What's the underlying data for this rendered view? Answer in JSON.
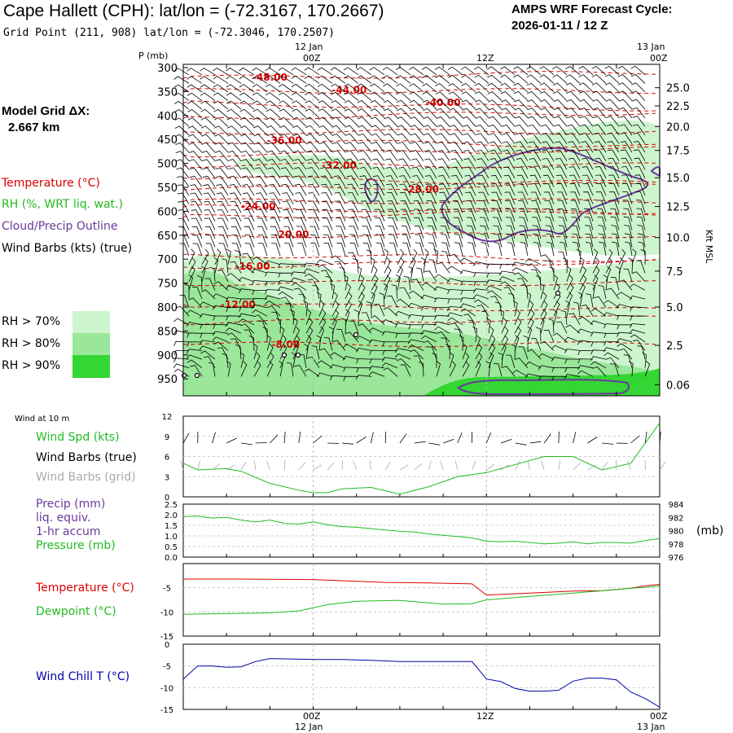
{
  "header": {
    "title": "Cape Hallett (CPH):  lat/lon = (-72.3167, 170.2667)",
    "grid_point": "Grid Point (211, 908) lat/lon = (-72.3046, 170.2507)",
    "cycle_line1": "AMPS WRF Forecast Cycle:",
    "cycle_line2": "2026-01-11 / 12  Z",
    "model_grid_line1": "Model Grid ΔX:",
    "model_grid_line2": "2.667 km"
  },
  "legend_upper": {
    "temperature": "Temperature (°C)",
    "rh": "RH (%, WRT liq. wat.)",
    "cloud": "Cloud/Precip Outline",
    "wind": "Wind Barbs (kts) (true)",
    "rh70": "RH > 70%",
    "rh80": "RH > 80%",
    "rh90": "RH > 90%"
  },
  "colors": {
    "temperature": "#dd0000",
    "rh": "#22bb22",
    "cloud": "#6a3a9a",
    "rh70": "#cdf5cd",
    "rh80": "#9ae69a",
    "rh90": "#33d633",
    "wind_chill": "#0000aa",
    "grid_barbs": "#aaaaaa"
  },
  "time_axis": {
    "top_labels": [
      "12 Jan",
      "13 Jan"
    ],
    "top_hours": [
      "00Z",
      "12Z",
      "00Z"
    ],
    "bottom_hours": [
      "00Z",
      "12Z",
      "00Z"
    ],
    "bottom_labels": [
      "12 Jan",
      "13 Jan"
    ],
    "start_hour": -9,
    "end_hour": 24
  },
  "chart_data": [
    {
      "type": "cross-section",
      "title": "Vertical time-section",
      "ylabel": "P (mb)",
      "y2label": "Kft MSL",
      "pressure_ticks": [
        300,
        350,
        400,
        450,
        500,
        550,
        600,
        650,
        700,
        750,
        800,
        850,
        900,
        950
      ],
      "height_ticks": [
        "25.0",
        "22.5",
        "20.0",
        "17.5",
        "15.0",
        "12.5",
        "10.0",
        "7.5",
        "5.0",
        "2.5",
        "0.06"
      ],
      "height_tick_pressures": [
        342,
        380,
        423,
        473,
        530,
        590,
        655,
        725,
        800,
        880,
        962
      ],
      "temperature_contours": [
        {
          "label": "-48.00",
          "p": 320,
          "t": -3
        },
        {
          "label": "-44.00",
          "p": 347,
          "t": 2.5
        },
        {
          "label": "-40.00",
          "p": 373,
          "t": 9
        },
        {
          "label": "-36.00",
          "p": 452,
          "t": -2
        },
        {
          "label": "-32.00",
          "p": 504,
          "t": 1.8
        },
        {
          "label": "-28.00",
          "p": 554,
          "t": 7.5
        },
        {
          "label": "-24.00",
          "p": 590,
          "t": -3.8
        },
        {
          "label": "-20.00",
          "p": 649,
          "t": -1.5
        },
        {
          "label": "-16.00",
          "p": 715,
          "t": -4.2
        },
        {
          "label": "-12.00",
          "p": 795,
          "t": -5.2
        },
        {
          "label": "-8.00",
          "p": 878,
          "t": -1.9
        }
      ]
    },
    {
      "type": "line",
      "title": "Wind at 10 m",
      "series": [
        {
          "name": "Wind Spd (kts)",
          "x": [
            -9,
            -8,
            -6,
            -5,
            -3,
            -1,
            0,
            1,
            2,
            4,
            6,
            8,
            10,
            12,
            14,
            16,
            18,
            20,
            22,
            24
          ],
          "values": [
            5,
            4,
            4.2,
            3.8,
            2,
            1,
            0.6,
            0.6,
            1.2,
            1.4,
            0.4,
            1.5,
            3,
            3.6,
            4.8,
            6,
            6,
            4,
            5,
            11
          ]
        }
      ],
      "ylim": [
        0,
        12
      ],
      "yticks": [
        "12",
        "9",
        "6",
        "3",
        "0"
      ],
      "labels": [
        "Wind Spd (kts)",
        "Wind Barbs (true)",
        "Wind Barbs (grid)"
      ]
    },
    {
      "type": "line",
      "title": "Precip / Pressure",
      "series": [
        {
          "name": "Precip (mm) liq. equiv. 1-hr accum",
          "x": [
            -9,
            24
          ],
          "values": [
            0,
            0
          ]
        },
        {
          "name": "Pressure (mb)",
          "x": [
            -9,
            -8,
            -7,
            -6,
            -5,
            -4,
            -3,
            -2,
            -1,
            0,
            1,
            2,
            3,
            4,
            5,
            6,
            7,
            8,
            9,
            10,
            11,
            12,
            13,
            14,
            15,
            16,
            17,
            18,
            19,
            20,
            21,
            22,
            23,
            24
          ],
          "values": [
            982.1,
            982.2,
            981.9,
            982.0,
            981.6,
            981.3,
            981.6,
            981.1,
            981.0,
            981.3,
            980.9,
            980.6,
            980.5,
            980.3,
            980.1,
            979.9,
            979.8,
            979.5,
            979.3,
            979.1,
            978.9,
            978.4,
            978.3,
            978.4,
            978.2,
            978.0,
            978.1,
            978.3,
            978.0,
            978.2,
            978.2,
            978.1,
            978.5,
            978.8
          ]
        }
      ],
      "ylim_left": [
        0,
        2.5
      ],
      "ylim_right": [
        976,
        984
      ],
      "yticks_left": [
        "2.5",
        "2.0",
        "1.5",
        "1.0",
        "0.5",
        "0.0"
      ],
      "yticks_right": [
        "984",
        "982",
        "980",
        "978",
        "976"
      ],
      "labels": [
        "Precip (mm)",
        "liq. equiv.",
        "1-hr accum",
        "Pressure (mb)",
        "(mb)"
      ]
    },
    {
      "type": "line",
      "title": "Temperature / Dewpoint",
      "series": [
        {
          "name": "Temperature (°C)",
          "x": [
            -9,
            -5,
            0,
            5,
            8,
            11,
            12,
            15,
            18,
            20,
            22,
            23,
            24
          ],
          "values": [
            -3.2,
            -3.2,
            -3.3,
            -3.9,
            -4,
            -4.2,
            -6.5,
            -6.1,
            -5.7,
            -5.6,
            -5.1,
            -4.6,
            -4.3
          ]
        },
        {
          "name": "Dewpoint (°C)",
          "x": [
            -9,
            -5,
            -3,
            -1,
            1,
            3,
            6,
            9,
            11,
            12,
            15,
            18,
            21,
            22,
            23,
            24
          ],
          "values": [
            -10.5,
            -10.3,
            -10.2,
            -9.8,
            -8.5,
            -7.8,
            -7.6,
            -8.4,
            -8.3,
            -7.5,
            -6.8,
            -6.1,
            -5.4,
            -5.1,
            -4.9,
            -4.6
          ]
        }
      ],
      "ylim": [
        -15,
        0
      ],
      "yticks": [
        "-5",
        "-10",
        "-15"
      ]
    },
    {
      "type": "line",
      "title": "Wind Chill",
      "series": [
        {
          "name": "Wind Chill T (°C)",
          "x": [
            -9,
            -8,
            -7,
            -6,
            -5,
            -4,
            -3,
            0,
            2,
            4,
            6,
            8,
            10,
            11,
            12,
            13,
            14,
            15,
            16,
            17,
            18,
            19,
            20,
            21,
            22,
            23,
            24
          ],
          "values": [
            -8,
            -5,
            -5,
            -5.3,
            -5.2,
            -4,
            -3.3,
            -3.5,
            -3.5,
            -3.7,
            -4,
            -4,
            -4,
            -4,
            -8,
            -8.6,
            -10.2,
            -10.8,
            -10.8,
            -10.6,
            -8.5,
            -7.8,
            -7.8,
            -8.2,
            -11,
            -12.5,
            -14.5
          ]
        }
      ],
      "ylim": [
        -15,
        0
      ],
      "yticks": [
        "0",
        "-5",
        "-10",
        "-15"
      ]
    }
  ],
  "lower_legend": {
    "wind10m": "Wind at 10 m",
    "wind_spd": "Wind Spd (kts)",
    "barbs_true": "Wind Barbs (true)",
    "barbs_grid": "Wind Barbs (grid)",
    "precip1": "Precip (mm)",
    "precip2": "liq. equiv.",
    "precip3": "1-hr accum",
    "pressure": "Pressure (mb)",
    "mb_unit": "(mb)",
    "temperature": "Temperature (°C)",
    "dewpoint": "Dewpoint (°C)",
    "wind_chill": "Wind Chill T (°C)"
  },
  "axis_titles": {
    "p_mb": "P (mb)",
    "kft": "Kft MSL"
  }
}
